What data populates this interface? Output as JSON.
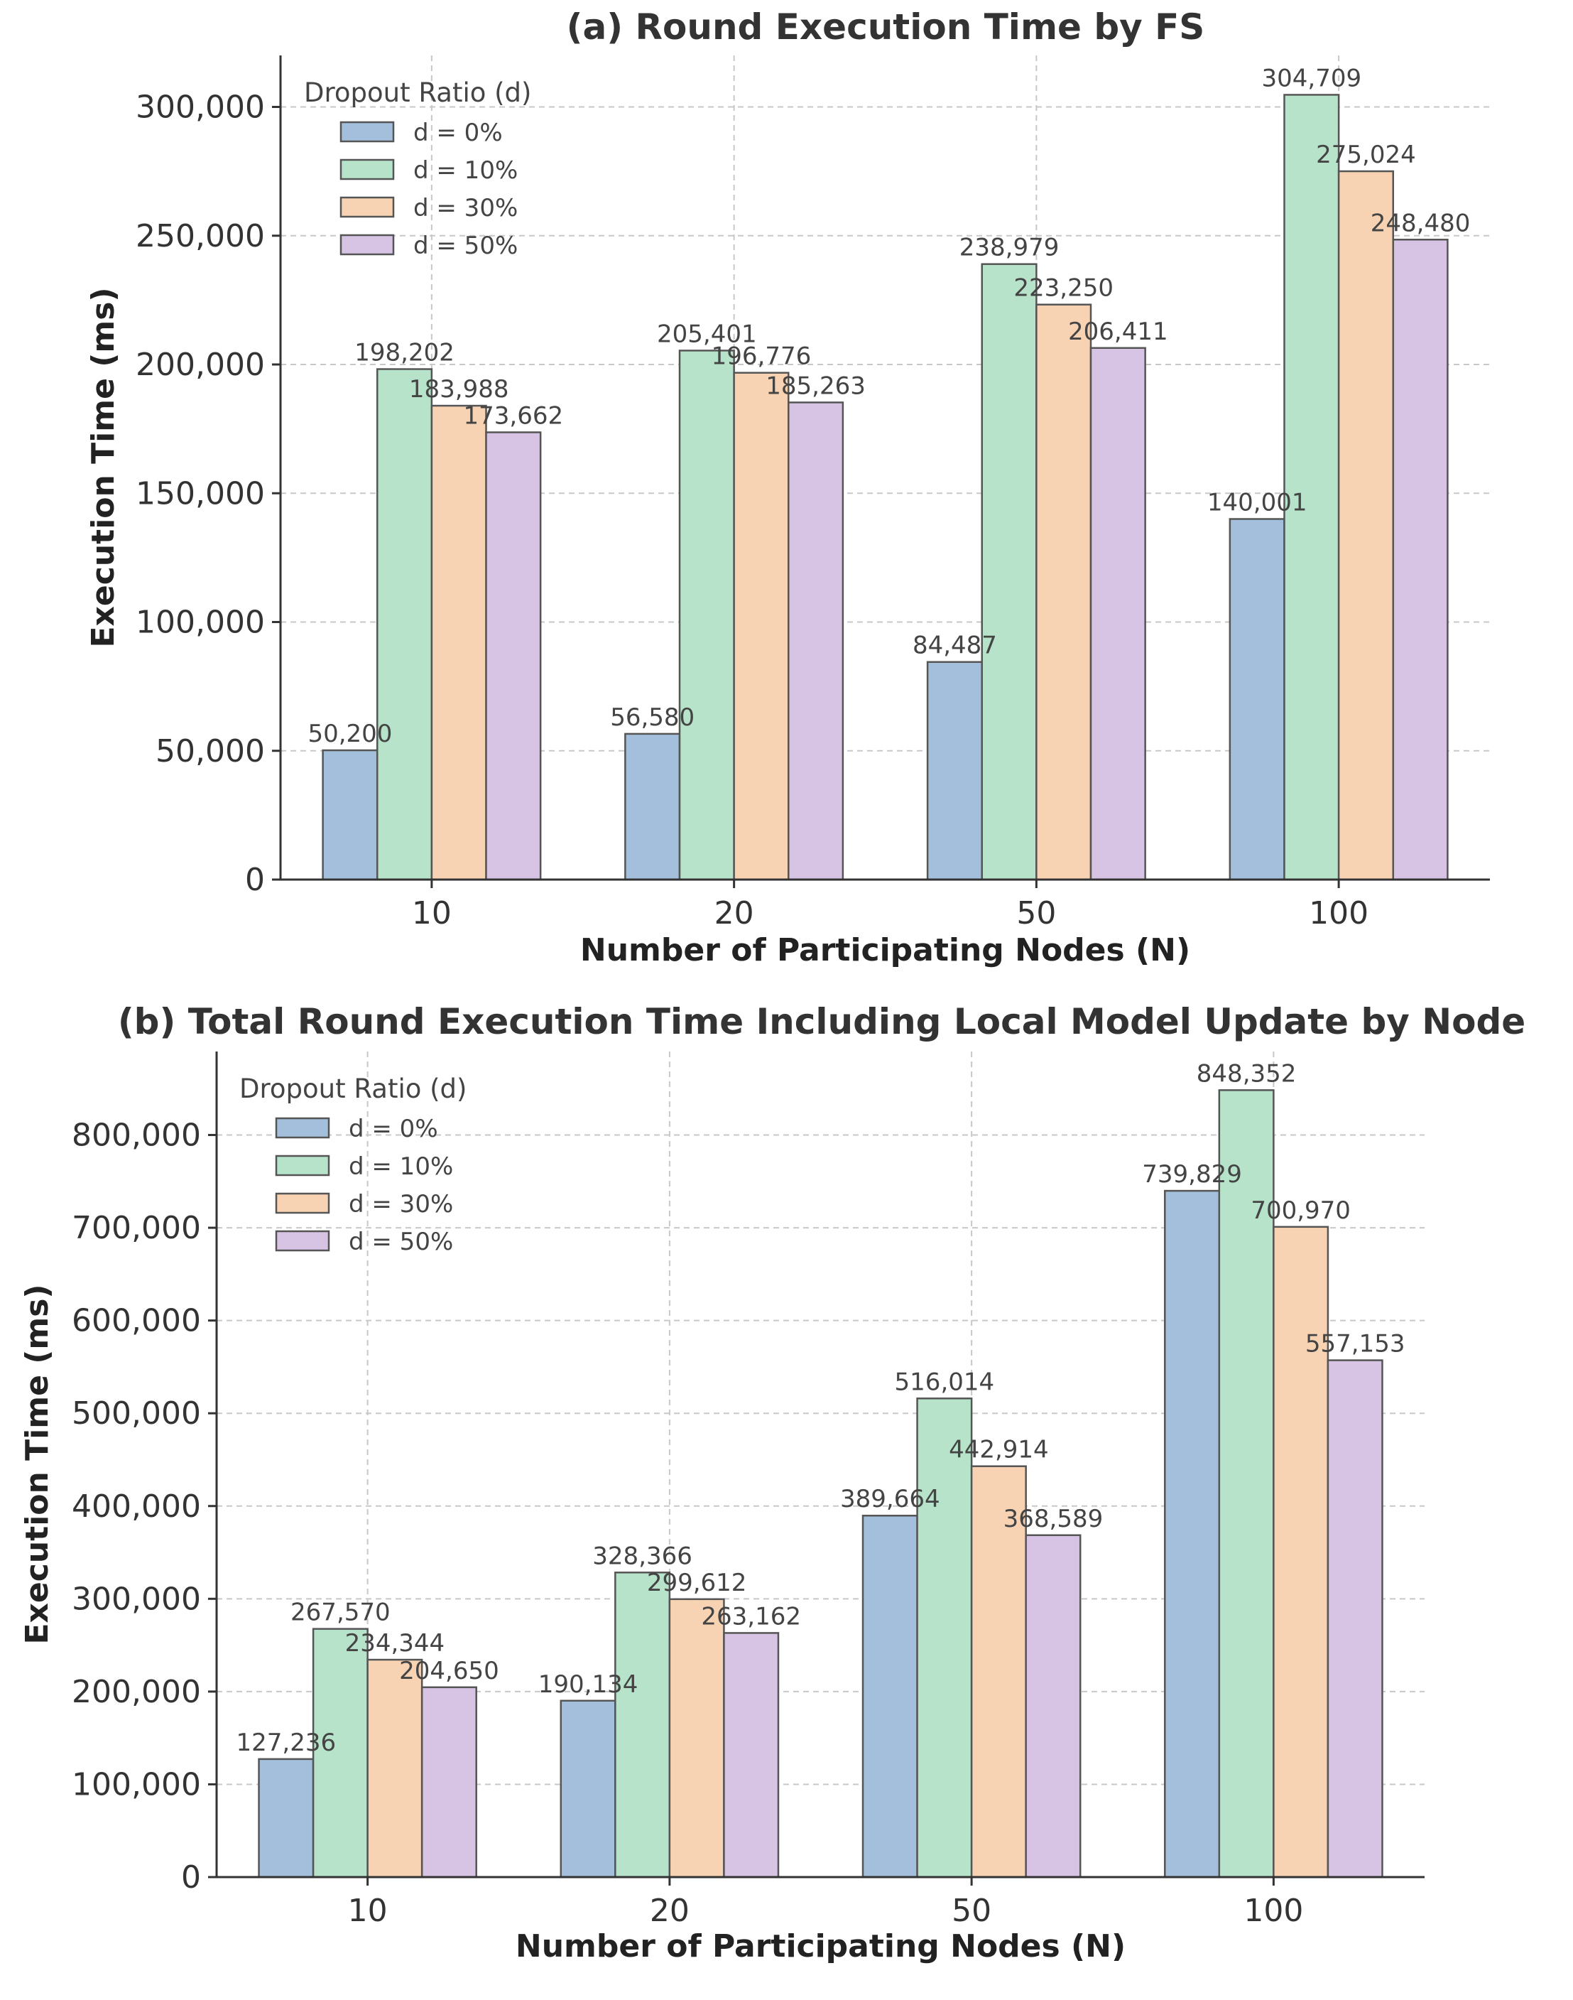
{
  "chart_data": [
    {
      "type": "bar",
      "title": "(a) Round Execution Time by FS",
      "xlabel": "Number of Participating Nodes (N)",
      "ylabel": "Execution Time (ms)",
      "categories": [
        "10",
        "20",
        "50",
        "100"
      ],
      "ylim": [
        0,
        320000
      ],
      "yticks": [
        0,
        50000,
        100000,
        150000,
        200000,
        250000,
        300000
      ],
      "ytick_labels": [
        "0",
        "50,000",
        "100,000",
        "150,000",
        "200,000",
        "250,000",
        "300,000"
      ],
      "grid": true,
      "legend": {
        "title": "Dropout Ratio (d)",
        "position": "top-left"
      },
      "series": [
        {
          "name": "d = 0%",
          "color": "#a3bfdb",
          "values": [
            50200,
            56580,
            84487,
            140001
          ],
          "labels": [
            "50,200",
            "56,580",
            "84,487",
            "140,001"
          ]
        },
        {
          "name": "d = 10%",
          "color": "#b6e3c9",
          "values": [
            198202,
            205401,
            238979,
            304709
          ],
          "labels": [
            "198,202",
            "205,401",
            "238,979",
            "304,709"
          ]
        },
        {
          "name": "d = 30%",
          "color": "#f8d3b3",
          "values": [
            183988,
            196776,
            223250,
            275024
          ],
          "labels": [
            "183,988",
            "196,776",
            "223,250",
            "275,024"
          ]
        },
        {
          "name": "d = 50%",
          "color": "#d7c3e3",
          "values": [
            173662,
            185263,
            206411,
            248480
          ],
          "labels": [
            "173,662",
            "185,263",
            "206,411",
            "248,480"
          ]
        }
      ]
    },
    {
      "type": "bar",
      "title": "(b) Total Round Execution Time Including Local Model Update by Node",
      "xlabel": "Number of Participating Nodes (N)",
      "ylabel": "Execution Time (ms)",
      "categories": [
        "10",
        "20",
        "50",
        "100"
      ],
      "ylim": [
        0,
        890000
      ],
      "yticks": [
        0,
        100000,
        200000,
        300000,
        400000,
        500000,
        600000,
        700000,
        800000
      ],
      "ytick_labels": [
        "0",
        "100,000",
        "200,000",
        "300,000",
        "400,000",
        "500,000",
        "600,000",
        "700,000",
        "800,000"
      ],
      "grid": true,
      "legend": {
        "title": "Dropout Ratio (d)",
        "position": "top-left"
      },
      "series": [
        {
          "name": "d = 0%",
          "color": "#a3bfdb",
          "values": [
            127236,
            190134,
            389664,
            739829
          ],
          "labels": [
            "127,236",
            "190,134",
            "389,664",
            "739,829"
          ]
        },
        {
          "name": "d = 10%",
          "color": "#b6e3c9",
          "values": [
            267570,
            328366,
            516014,
            848352
          ],
          "labels": [
            "267,570",
            "328,366",
            "516,014",
            "848,352"
          ]
        },
        {
          "name": "d = 30%",
          "color": "#f8d3b3",
          "values": [
            234344,
            299612,
            442914,
            700970
          ],
          "labels": [
            "234,344",
            "299,612",
            "442,914",
            "700,970"
          ]
        },
        {
          "name": "d = 50%",
          "color": "#d7c3e3",
          "values": [
            204650,
            263162,
            368589,
            557153
          ],
          "labels": [
            "204,650",
            "263,162",
            "368,589",
            "557,153"
          ]
        }
      ]
    }
  ]
}
